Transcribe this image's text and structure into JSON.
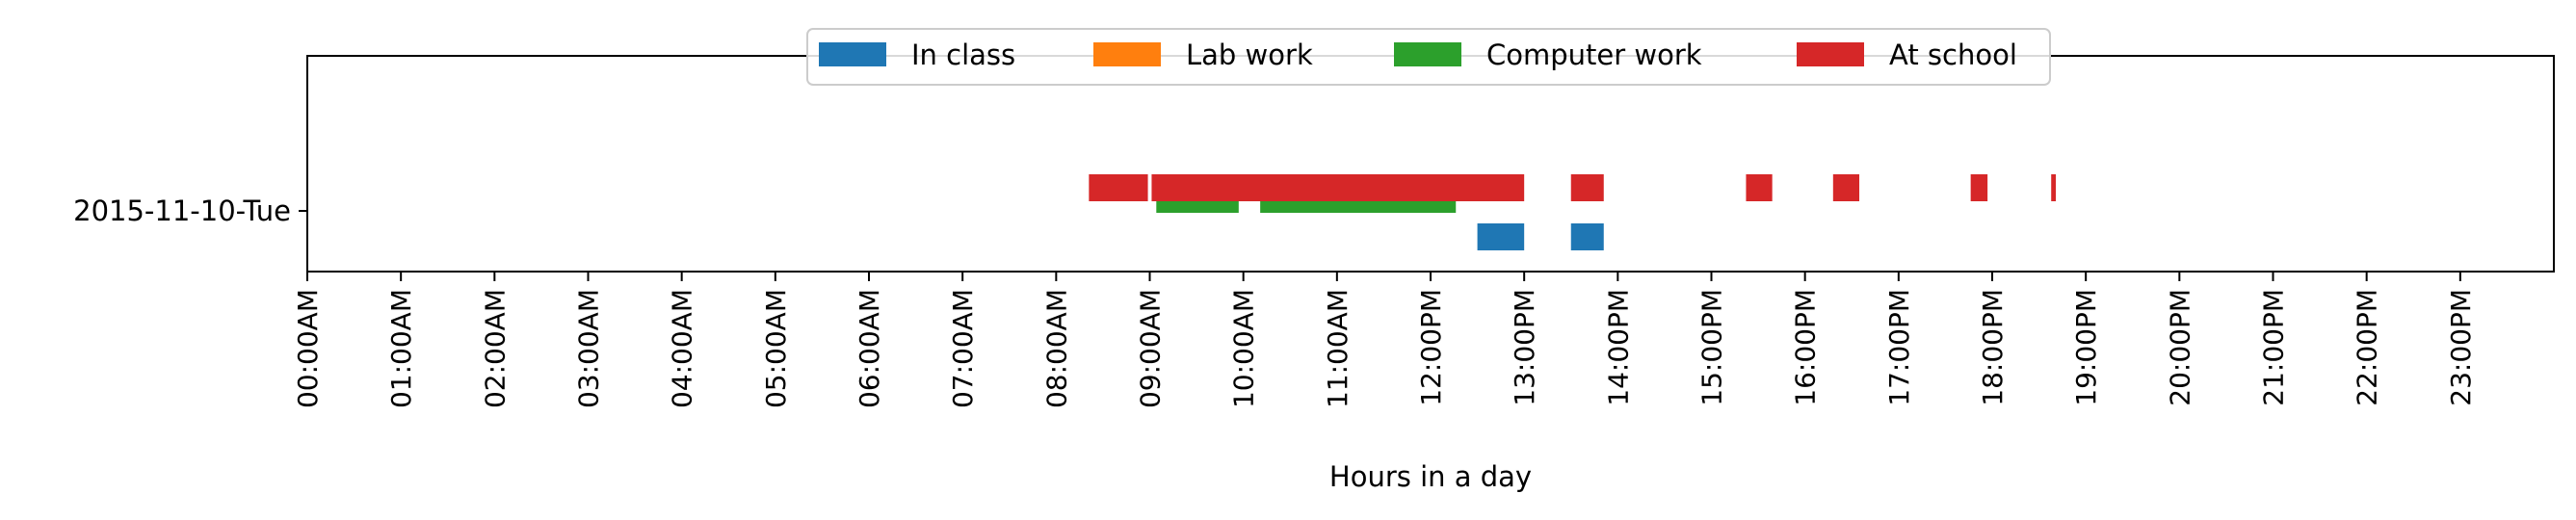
{
  "chart_data": {
    "type": "timeline",
    "title": "",
    "xlabel": "Hours in a day",
    "ylabel": "",
    "xlim": [
      0,
      24
    ],
    "categories": [
      "2015-11-10-Tue"
    ],
    "x_ticks": [
      0,
      1,
      2,
      3,
      4,
      5,
      6,
      7,
      8,
      9,
      10,
      11,
      12,
      13,
      14,
      15,
      16,
      17,
      18,
      19,
      20,
      21,
      22,
      23
    ],
    "x_tick_labels": [
      "00:00AM",
      "01:00AM",
      "02:00AM",
      "03:00AM",
      "04:00AM",
      "05:00AM",
      "06:00AM",
      "07:00AM",
      "08:00AM",
      "09:00AM",
      "10:00AM",
      "11:00AM",
      "12:00PM",
      "13:00PM",
      "14:00PM",
      "15:00PM",
      "16:00PM",
      "17:00PM",
      "18:00PM",
      "19:00PM",
      "20:00PM",
      "21:00PM",
      "22:00PM",
      "23:00PM"
    ],
    "grid": false,
    "legend_position": "top-center",
    "series": [
      {
        "name": "In class",
        "color": "#1f77b4",
        "lane": "bottom",
        "intervals": [
          [
            12.5,
            13.0
          ],
          [
            13.5,
            13.85
          ]
        ]
      },
      {
        "name": "Lab work",
        "color": "#ff7f0e",
        "lane": "bottom",
        "intervals": []
      },
      {
        "name": "Computer work",
        "color": "#2ca02c",
        "lane": "middle",
        "intervals": [
          [
            9.07,
            9.95
          ],
          [
            10.18,
            12.27
          ]
        ]
      },
      {
        "name": "At school",
        "color": "#d62728",
        "lane": "top",
        "intervals": [
          [
            8.35,
            8.98
          ],
          [
            9.02,
            13.0
          ],
          [
            13.5,
            13.85
          ],
          [
            15.37,
            15.65
          ],
          [
            16.3,
            16.58
          ],
          [
            17.77,
            17.95
          ],
          [
            18.63,
            18.68
          ]
        ]
      }
    ]
  }
}
